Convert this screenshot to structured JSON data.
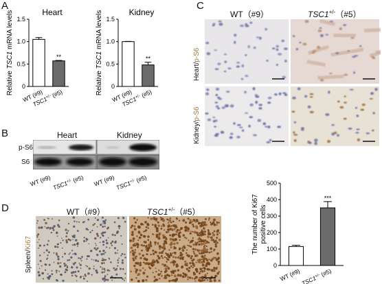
{
  "panels": {
    "A": {
      "label": "A",
      "charts": [
        {
          "title": "Heart",
          "ylabel_pre": "Relative ",
          "ylabel_gene": "TSC1",
          "ylabel_post": " mRNA levels",
          "ticks": [
            "0",
            "0.5",
            "1.0",
            "1.5"
          ],
          "categories": [
            {
              "pre": "WT (#9)",
              "gene": "",
              "sup": "",
              "post": ""
            },
            {
              "pre": "",
              "gene": "TSC1",
              "sup": "+/-",
              "post": " (#5)"
            }
          ],
          "sig": "**"
        },
        {
          "title": "Kidney",
          "ylabel_pre": "Relative ",
          "ylabel_gene": "TSC1",
          "ylabel_post": " mRNA levels",
          "ticks": [
            "0",
            "0.5",
            "1.0",
            "1.5"
          ],
          "categories": [
            {
              "pre": "WT (#9)",
              "gene": "",
              "sup": "",
              "post": ""
            },
            {
              "pre": "",
              "gene": "TSC1",
              "sup": "+/-",
              "post": " (#5)"
            }
          ],
          "sig": "**"
        }
      ]
    },
    "B": {
      "label": "B",
      "heart": "Heart",
      "kidney": "Kidney",
      "rows": [
        "p-S6",
        "S6"
      ],
      "lanes": [
        {
          "pre": "WT (#9)",
          "gene": "",
          "sup": "",
          "post": ""
        },
        {
          "pre": "",
          "gene": "TSC1",
          "sup": "+/-",
          "post": " (#5)"
        },
        {
          "pre": "WT (#9)",
          "gene": "",
          "sup": "",
          "post": ""
        },
        {
          "pre": "",
          "gene": "TSC1",
          "sup": "+/-",
          "post": " (#5)"
        }
      ]
    },
    "C": {
      "label": "C",
      "col_wt": "WT（#9）",
      "col_tsc_gene": "TSC1",
      "col_tsc_sup": "+/-",
      "col_tsc_post": "（#5）",
      "row1_a": "Heart/",
      "row1_b": "p-S6",
      "row2_a": "Kidney/",
      "row2_b": "p-S6"
    },
    "D": {
      "label": "D",
      "col_wt": "WT（#9）",
      "col_tsc_gene": "TSC1",
      "col_tsc_sup": "+/-",
      "col_tsc_post": "（#5）",
      "row_a": "Spleen/",
      "row_b": "Ki67",
      "ylabel_1": "The number of Ki67",
      "ylabel_2": "positive cells",
      "ticks": [
        "0",
        "100",
        "200",
        "300",
        "400",
        "500"
      ],
      "categories": [
        {
          "pre": "WT (#9)",
          "gene": "",
          "sup": "",
          "post": ""
        },
        {
          "pre": "",
          "gene": "TSC1",
          "sup": "+/-",
          "post": " (#5)"
        }
      ],
      "sig": "***"
    }
  },
  "chart_data": [
    {
      "type": "bar",
      "title": "Heart",
      "categories": [
        "WT (#9)",
        "TSC1+/- (#5)"
      ],
      "values": [
        1.05,
        0.57
      ],
      "errors": [
        0.04,
        0.01
      ],
      "ylim": [
        0,
        1.5
      ],
      "ylabel": "Relative TSC1 mRNA levels",
      "colors": [
        "#ffffff",
        "#6b6b6b"
      ]
    },
    {
      "type": "bar",
      "title": "Kidney",
      "categories": [
        "WT (#9)",
        "TSC1+/- (#5)"
      ],
      "values": [
        1.0,
        0.48
      ],
      "errors": [
        0.005,
        0.06
      ],
      "ylim": [
        0,
        1.5
      ],
      "ylabel": "Relative TSC1 mRNA levels",
      "colors": [
        "#ffffff",
        "#6b6b6b"
      ]
    },
    {
      "type": "bar",
      "title": "",
      "categories": [
        "WT (#9)",
        "TSC1+/- (#5)"
      ],
      "values": [
        115,
        350
      ],
      "errors": [
        8,
        38
      ],
      "ylim": [
        0,
        500
      ],
      "ylabel": "The number of Ki67 positive cells",
      "colors": [
        "#ffffff",
        "#6b6b6b"
      ]
    }
  ]
}
